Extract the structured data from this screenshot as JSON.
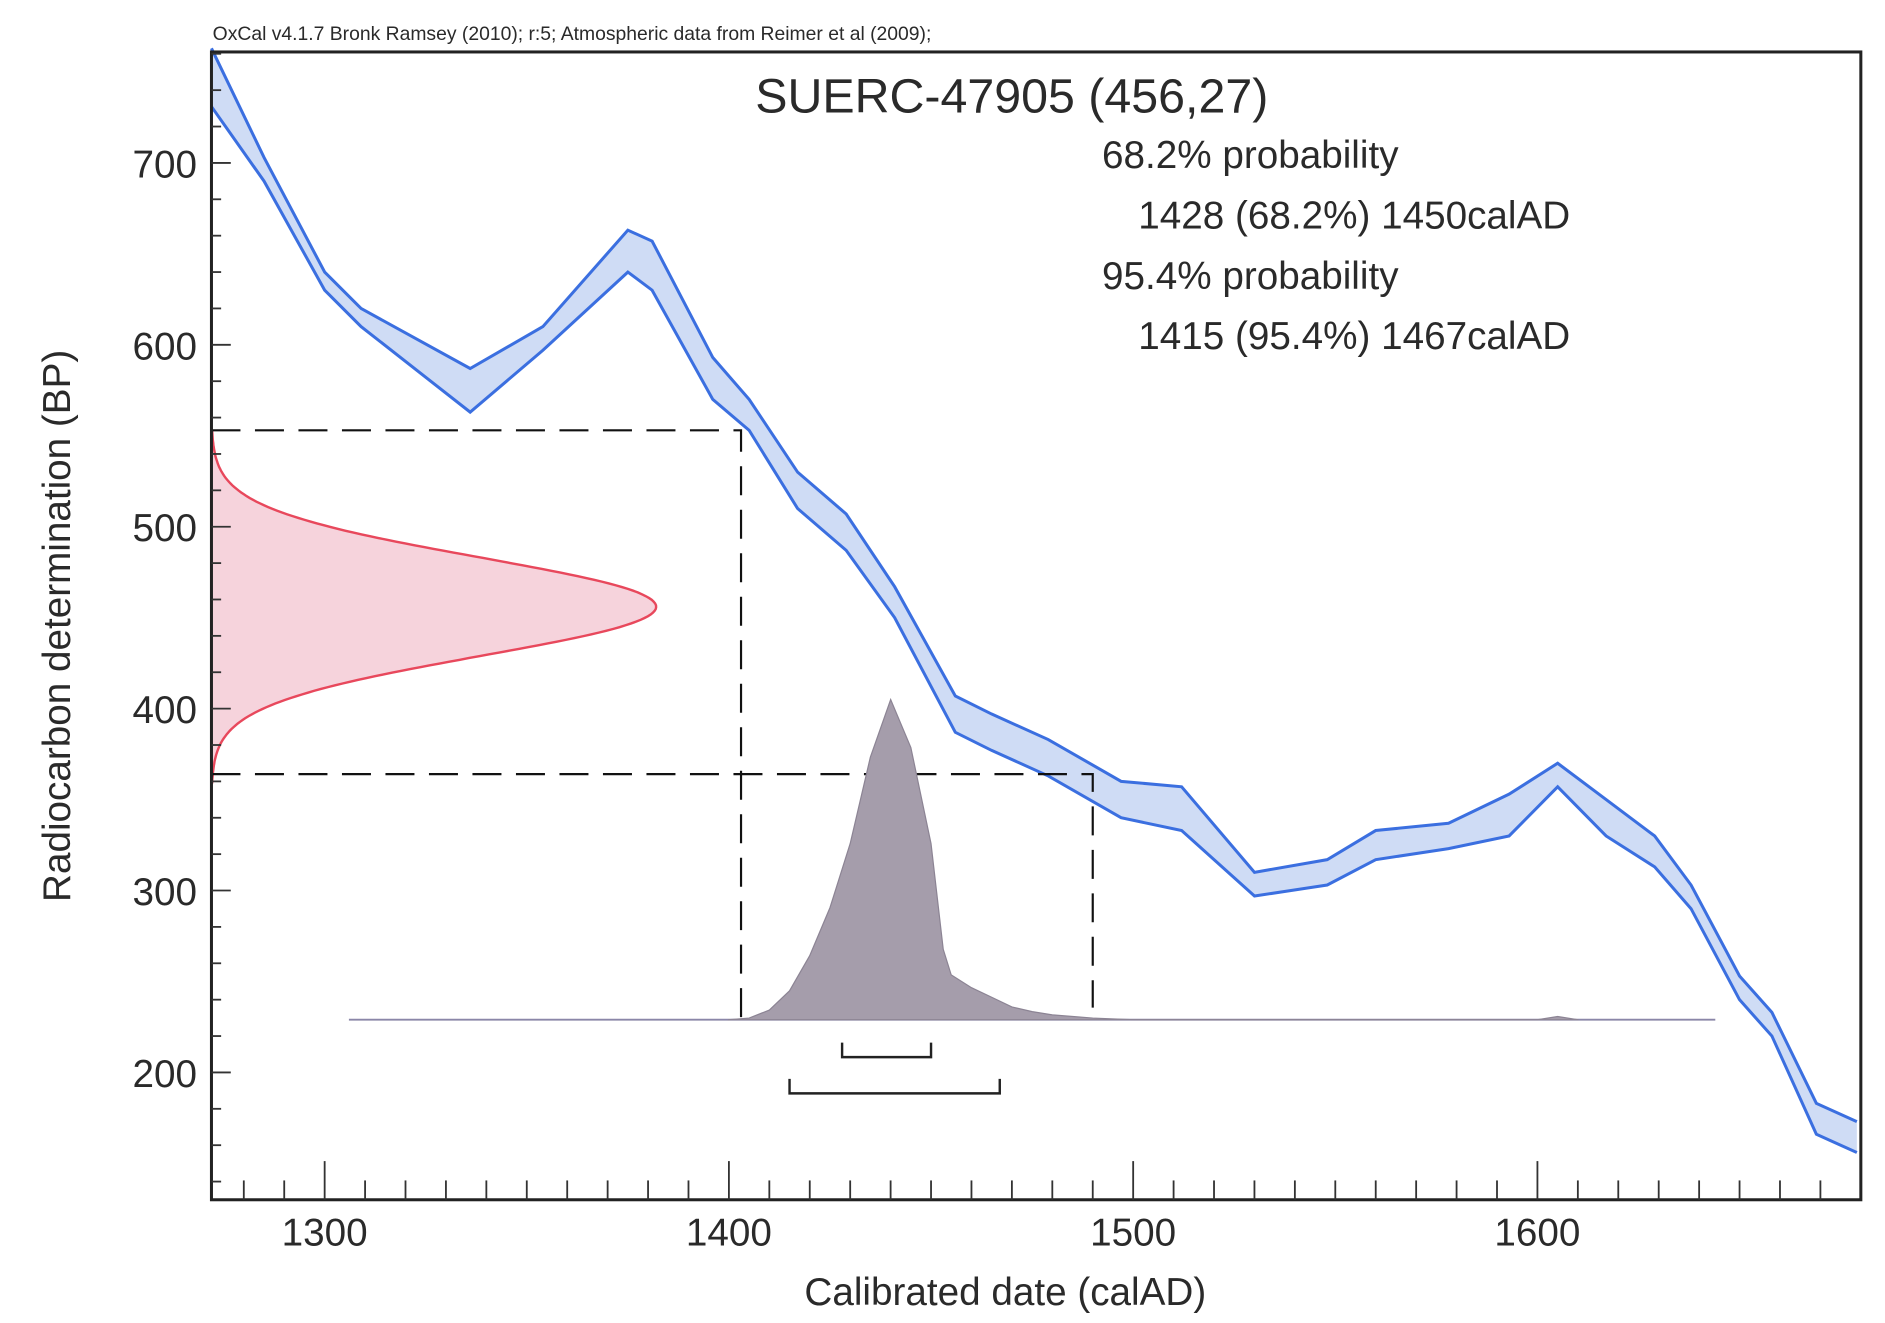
{
  "header": "OxCal v4.1.7 Bronk Ramsey (2010); r:5; Atmospheric data from Reimer et al (2009);",
  "chart_data": {
    "type": "area",
    "title": "SUERC-47905 (456,27)",
    "xlabel": "Calibrated date (calAD)",
    "ylabel": "Radiocarbon determination (BP)",
    "xlim": [
      1272,
      1680
    ],
    "ylim": [
      130,
      761
    ],
    "xticks": [
      1300,
      1400,
      1500,
      1600
    ],
    "xtick_labels": [
      "1300",
      "1400",
      "1500",
      "1600"
    ],
    "yticks": [
      200,
      300,
      400,
      500,
      600,
      700
    ],
    "ytick_labels": [
      "200",
      "300",
      "400",
      "500",
      "600",
      "700"
    ],
    "annotations": [
      "68.2% probability",
      "1428 (68.2%) 1450calAD",
      "95.4% probability",
      "1415 (95.4%) 1467calAD"
    ],
    "measurement": {
      "mean_bp": 456,
      "sd": 27
    },
    "range_68": [
      1428,
      1450
    ],
    "range_95": [
      1415,
      1467
    ],
    "range_95_bp": [
      364,
      553
    ],
    "range_95_cal_dash": [
      1403,
      1490
    ],
    "calibration_curve": {
      "x": [
        1272,
        1285,
        1300,
        1309,
        1336,
        1354,
        1375,
        1381,
        1396,
        1405,
        1417,
        1429,
        1441,
        1456,
        1465,
        1479,
        1497,
        1512,
        1530,
        1548,
        1560,
        1578,
        1593,
        1605,
        1617,
        1629,
        1638,
        1650,
        1658,
        1669,
        1679
      ],
      "upper": [
        763,
        703,
        640,
        620,
        587,
        610,
        663,
        657,
        593,
        570,
        530,
        507,
        467,
        407,
        397,
        383,
        360,
        357,
        310,
        317,
        333,
        337,
        353,
        370,
        350,
        330,
        303,
        253,
        233,
        183,
        173
      ],
      "lower": [
        731,
        690,
        630,
        610,
        563,
        597,
        640,
        630,
        570,
        553,
        510,
        487,
        450,
        387,
        377,
        363,
        340,
        333,
        297,
        303,
        317,
        323,
        330,
        357,
        330,
        313,
        290,
        240,
        220,
        166,
        156
      ]
    },
    "posterior": {
      "baseline_bp": 229,
      "peak_height_bp": 176,
      "baseline_range": [
        1306,
        1644
      ],
      "x": [
        1400,
        1405,
        1410,
        1415,
        1420,
        1425,
        1430,
        1435,
        1440,
        1445,
        1450,
        1453,
        1455,
        1460,
        1465,
        1470,
        1475,
        1480,
        1490,
        1500,
        1600,
        1605,
        1610
      ],
      "density": [
        0,
        0.005,
        0.03,
        0.09,
        0.2,
        0.35,
        0.55,
        0.82,
        1.0,
        0.85,
        0.55,
        0.22,
        0.14,
        0.1,
        0.07,
        0.04,
        0.025,
        0.015,
        0.005,
        0,
        0,
        0.01,
        0
      ]
    },
    "colors": {
      "curve_stroke": "#3b6fe0",
      "curve_fill": "#cfdcf5",
      "measurement_stroke": "#e8485c",
      "measurement_fill": "#f6d3dc",
      "posterior_fill": "#a59dab"
    }
  }
}
